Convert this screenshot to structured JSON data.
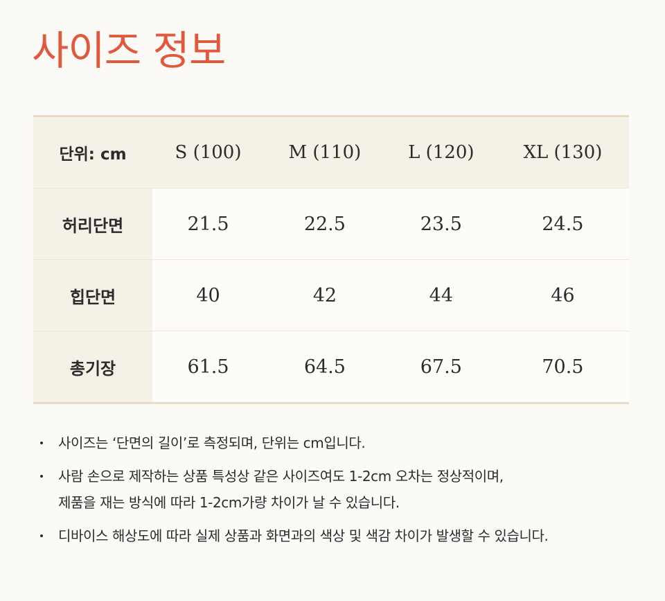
{
  "title": "사이즈 정보",
  "table": {
    "unit_label": "단위: cm",
    "sizes": [
      "S (100)",
      "M (110)",
      "L (120)",
      "XL (130)"
    ],
    "rows": [
      {
        "label": "허리단면",
        "values": [
          "21.5",
          "22.5",
          "23.5",
          "24.5"
        ]
      },
      {
        "label": "힙단면",
        "values": [
          "40",
          "42",
          "44",
          "46"
        ]
      },
      {
        "label": "총기장",
        "values": [
          "61.5",
          "64.5",
          "67.5",
          "70.5"
        ]
      }
    ]
  },
  "notes": [
    {
      "lines": [
        "사이즈는 ‘단면의 길이’로 측정되며, 단위는 cm입니다."
      ]
    },
    {
      "lines": [
        "사람 손으로 제작하는 상품 특성상 같은 사이즈여도 1-2cm 오차는 정상적이며,",
        "제품을 재는 방식에 따라 1-2cm가량 차이가 날 수 있습니다."
      ]
    },
    {
      "lines": [
        "디바이스 해상도에 따라 실제 상품과 화면과의 색상 및 색감 차이가 발생할 수 있습니다."
      ]
    }
  ],
  "colors": {
    "title": "#e2583c",
    "header_bg": "#f6f1e7",
    "border": "#e8dcc8",
    "background": "#fbfaf6"
  }
}
